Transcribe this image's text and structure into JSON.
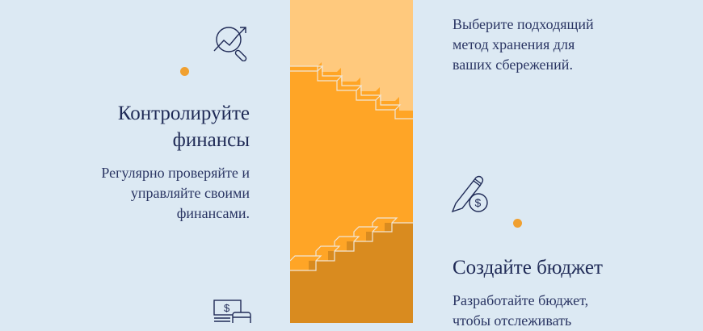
{
  "colors": {
    "background": "#dce9f3",
    "text": "#1f2a56",
    "stair_top": "#ffc97d",
    "stair_mid": "#ffa526",
    "stair_bottom": "#d98b1f",
    "dot": "#f0a030"
  },
  "left": {
    "icon": "chart-magnifier-icon",
    "title": "Контролируйте финансы",
    "title_lines": [
      "Контролируйте",
      "финансы"
    ],
    "desc_lines": [
      "Регулярно проверяйте и",
      "управляйте своими",
      "финансами."
    ],
    "bottom_icon": "banknote-card-icon"
  },
  "right": {
    "top_desc_lines": [
      "Выберите подходящий",
      "метод хранения для",
      "ваших сбережений."
    ],
    "icon": "pencil-coin-icon",
    "title": "Создайте бюджет",
    "desc_lines": [
      "Разработайте бюджет,",
      "чтобы отслеживать"
    ]
  }
}
